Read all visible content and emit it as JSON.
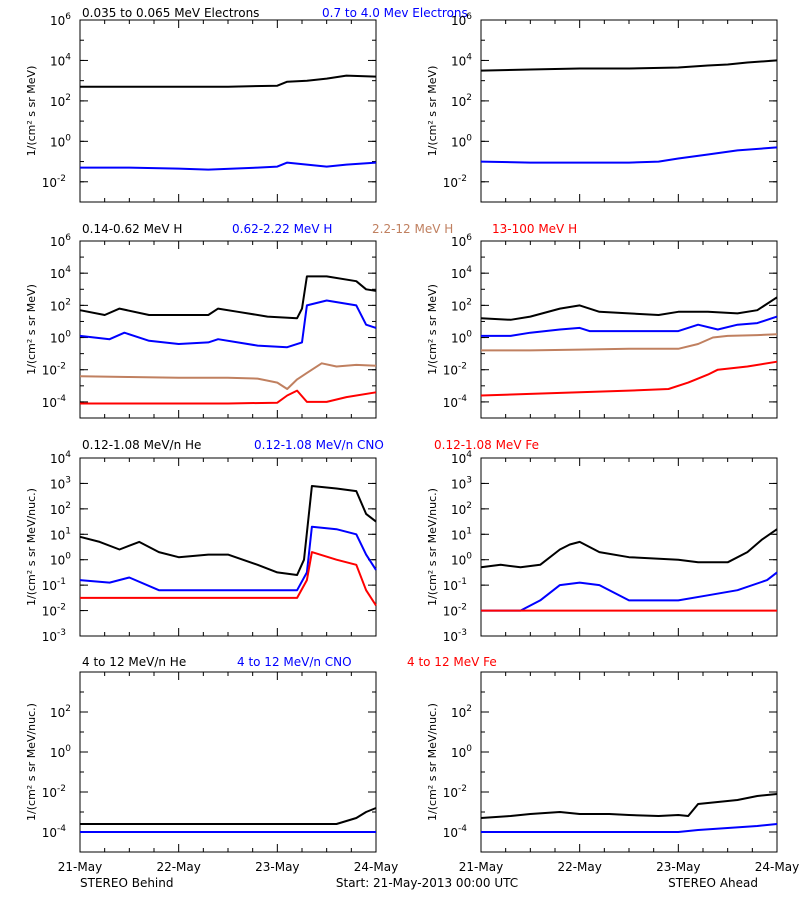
{
  "chart_data": {
    "type": "line",
    "x_ticks": [
      "21-May",
      "22-May",
      "23-May",
      "24-May"
    ],
    "x_range_days": [
      0,
      3
    ],
    "footer": {
      "left": "STEREO Behind",
      "center": "Start: 21-May-2013 00:00 UTC",
      "right": "STEREO Ahead"
    },
    "rows": [
      {
        "ylabel": "1/(cm² s sr MeV)",
        "log_ylim": [
          -3,
          6
        ],
        "tick_exps": [
          -2,
          0,
          2,
          4,
          6
        ],
        "legend": [
          {
            "text": "0.035 to 0.065 MeV Electrons",
            "color": "#000000"
          },
          {
            "text": "0.7 to 4.0 Mev Electrons",
            "color": "#0000ff"
          }
        ],
        "panels": [
          {
            "name": "STEREO Behind",
            "series": [
              {
                "color": "#000000",
                "x": [
                  0,
                  0.5,
                  1.0,
                  1.5,
                  2.0,
                  2.1,
                  2.3,
                  2.5,
                  2.7,
                  3.0
                ],
                "log_y": [
                  2.7,
                  2.7,
                  2.7,
                  2.7,
                  2.75,
                  2.95,
                  3.0,
                  3.1,
                  3.25,
                  3.2
                ]
              },
              {
                "color": "#0000ff",
                "x": [
                  0,
                  0.5,
                  1.0,
                  1.3,
                  1.8,
                  2.0,
                  2.1,
                  2.3,
                  2.5,
                  2.7,
                  3.0
                ],
                "log_y": [
                  -1.3,
                  -1.3,
                  -1.35,
                  -1.4,
                  -1.3,
                  -1.25,
                  -1.05,
                  -1.15,
                  -1.25,
                  -1.15,
                  -1.05
                ]
              }
            ]
          },
          {
            "name": "STEREO Ahead",
            "series": [
              {
                "color": "#000000",
                "x": [
                  0,
                  0.5,
                  1.0,
                  1.5,
                  2.0,
                  2.3,
                  2.5,
                  2.7,
                  3.0
                ],
                "log_y": [
                  3.5,
                  3.55,
                  3.6,
                  3.6,
                  3.65,
                  3.75,
                  3.8,
                  3.9,
                  4.0
                ]
              },
              {
                "color": "#0000ff",
                "x": [
                  0,
                  0.5,
                  1.0,
                  1.5,
                  1.8,
                  2.0,
                  2.3,
                  2.6,
                  3.0
                ],
                "log_y": [
                  -1.0,
                  -1.05,
                  -1.05,
                  -1.05,
                  -1.0,
                  -0.85,
                  -0.65,
                  -0.45,
                  -0.3
                ]
              }
            ]
          }
        ]
      },
      {
        "ylabel": "1/(cm² s sr MeV)",
        "log_ylim": [
          -5,
          6
        ],
        "tick_exps": [
          -4,
          -2,
          0,
          2,
          4,
          6
        ],
        "legend": [
          {
            "text": "0.14-0.62 MeV H",
            "color": "#000000"
          },
          {
            "text": "0.62-2.22 MeV H",
            "color": "#0000ff"
          },
          {
            "text": "2.2-12 MeV H",
            "color": "#c08060"
          },
          {
            "text": "13-100 MeV H",
            "color": "#ff0000"
          }
        ],
        "panels": [
          {
            "name": "STEREO Behind",
            "series": [
              {
                "color": "#000000",
                "x": [
                  0,
                  0.25,
                  0.4,
                  0.7,
                  1.0,
                  1.3,
                  1.4,
                  1.6,
                  1.9,
                  2.2,
                  2.25,
                  2.3,
                  2.5,
                  2.8,
                  2.9,
                  3.0
                ],
                "log_y": [
                  1.7,
                  1.4,
                  1.8,
                  1.4,
                  1.4,
                  1.4,
                  1.8,
                  1.6,
                  1.3,
                  1.2,
                  1.8,
                  3.8,
                  3.8,
                  3.5,
                  3.0,
                  2.9
                ]
              },
              {
                "color": "#0000ff",
                "x": [
                  0,
                  0.3,
                  0.45,
                  0.7,
                  1.0,
                  1.3,
                  1.4,
                  1.8,
                  2.1,
                  2.25,
                  2.3,
                  2.5,
                  2.8,
                  2.9,
                  3.0
                ],
                "log_y": [
                  0.1,
                  -0.1,
                  0.3,
                  -0.2,
                  -0.4,
                  -0.3,
                  -0.1,
                  -0.5,
                  -0.6,
                  -0.3,
                  2.0,
                  2.3,
                  2.0,
                  0.8,
                  0.6
                ]
              },
              {
                "color": "#c08060",
                "x": [
                  0,
                  0.5,
                  1.0,
                  1.5,
                  1.8,
                  2.0,
                  2.1,
                  2.2,
                  2.3,
                  2.45,
                  2.6,
                  2.8,
                  3.0
                ],
                "log_y": [
                  -2.4,
                  -2.45,
                  -2.5,
                  -2.5,
                  -2.55,
                  -2.8,
                  -3.2,
                  -2.6,
                  -2.2,
                  -1.6,
                  -1.8,
                  -1.7,
                  -1.75
                ]
              },
              {
                "color": "#ff0000",
                "x": [
                  0,
                  0.5,
                  1.0,
                  1.5,
                  2.0,
                  2.1,
                  2.2,
                  2.3,
                  2.5,
                  2.7,
                  3.0
                ],
                "log_y": [
                  -4.1,
                  -4.1,
                  -4.1,
                  -4.1,
                  -4.05,
                  -3.6,
                  -3.3,
                  -4.0,
                  -4.0,
                  -3.7,
                  -3.4
                ]
              }
            ]
          },
          {
            "name": "STEREO Ahead",
            "series": [
              {
                "color": "#000000",
                "x": [
                  0,
                  0.3,
                  0.5,
                  0.8,
                  1.0,
                  1.2,
                  1.5,
                  1.8,
                  2.0,
                  2.3,
                  2.6,
                  2.8,
                  3.0
                ],
                "log_y": [
                  1.2,
                  1.1,
                  1.3,
                  1.8,
                  2.0,
                  1.6,
                  1.5,
                  1.4,
                  1.6,
                  1.6,
                  1.5,
                  1.7,
                  2.5
                ]
              },
              {
                "color": "#0000ff",
                "x": [
                  0,
                  0.3,
                  0.5,
                  0.8,
                  1.0,
                  1.1,
                  1.5,
                  2.0,
                  2.2,
                  2.4,
                  2.6,
                  2.8,
                  3.0
                ],
                "log_y": [
                  0.1,
                  0.1,
                  0.3,
                  0.5,
                  0.6,
                  0.4,
                  0.4,
                  0.4,
                  0.8,
                  0.5,
                  0.8,
                  0.9,
                  1.3
                ]
              },
              {
                "color": "#c08060",
                "x": [
                  0,
                  0.5,
                  1.0,
                  1.5,
                  2.0,
                  2.2,
                  2.35,
                  2.5,
                  2.8,
                  3.0
                ],
                "log_y": [
                  -0.8,
                  -0.8,
                  -0.75,
                  -0.7,
                  -0.7,
                  -0.4,
                  0.0,
                  0.1,
                  0.15,
                  0.2
                ]
              },
              {
                "color": "#ff0000",
                "x": [
                  0,
                  0.5,
                  1.0,
                  1.5,
                  1.9,
                  2.1,
                  2.3,
                  2.4,
                  2.7,
                  3.0
                ],
                "log_y": [
                  -3.6,
                  -3.5,
                  -3.4,
                  -3.3,
                  -3.2,
                  -2.8,
                  -2.3,
                  -2.0,
                  -1.8,
                  -1.5
                ]
              }
            ]
          }
        ]
      },
      {
        "ylabel": "1/(cm² s sr MeV/nuc.)",
        "log_ylim": [
          -3,
          4
        ],
        "tick_exps": [
          -3,
          -2,
          -1,
          0,
          1,
          2,
          3,
          4
        ],
        "legend": [
          {
            "text": "0.12-1.08 MeV/n He",
            "color": "#000000"
          },
          {
            "text": "0.12-1.08 MeV/n CNO",
            "color": "#0000ff"
          },
          {
            "text": "0.12-1.08 MeV Fe",
            "color": "#ff0000"
          }
        ],
        "panels": [
          {
            "name": "STEREO Behind",
            "series": [
              {
                "color": "#000000",
                "x": [
                  0,
                  0.2,
                  0.4,
                  0.6,
                  0.8,
                  1.0,
                  1.3,
                  1.5,
                  1.8,
                  2.0,
                  2.2,
                  2.27,
                  2.35,
                  2.6,
                  2.8,
                  2.9,
                  3.0
                ],
                "log_y": [
                  0.9,
                  0.7,
                  0.4,
                  0.7,
                  0.3,
                  0.1,
                  0.2,
                  0.2,
                  -0.2,
                  -0.5,
                  -0.6,
                  0.0,
                  2.9,
                  2.8,
                  2.7,
                  1.8,
                  1.5
                ]
              },
              {
                "color": "#0000ff",
                "x": [
                  0,
                  0.3,
                  0.5,
                  0.8,
                  1.0,
                  1.5,
                  2.0,
                  2.2,
                  2.3,
                  2.35,
                  2.6,
                  2.8,
                  2.9,
                  3.0
                ],
                "log_y": [
                  -0.8,
                  -0.9,
                  -0.7,
                  -1.2,
                  -1.2,
                  -1.2,
                  -1.2,
                  -1.2,
                  -0.5,
                  1.3,
                  1.2,
                  1.0,
                  0.2,
                  -0.4
                ]
              },
              {
                "color": "#ff0000",
                "x": [
                  0,
                  0.5,
                  1.0,
                  1.5,
                  2.0,
                  2.2,
                  2.3,
                  2.35,
                  2.6,
                  2.8,
                  2.9,
                  3.0
                ],
                "log_y": [
                  -1.5,
                  -1.5,
                  -1.5,
                  -1.5,
                  -1.5,
                  -1.5,
                  -0.8,
                  0.3,
                  0.0,
                  -0.2,
                  -1.2,
                  -1.8
                ]
              }
            ]
          },
          {
            "name": "STEREO Ahead",
            "series": [
              {
                "color": "#000000",
                "x": [
                  0,
                  0.2,
                  0.4,
                  0.6,
                  0.8,
                  0.9,
                  1.0,
                  1.2,
                  1.5,
                  2.0,
                  2.2,
                  2.5,
                  2.7,
                  2.85,
                  3.0
                ],
                "log_y": [
                  -0.3,
                  -0.2,
                  -0.3,
                  -0.2,
                  0.4,
                  0.6,
                  0.7,
                  0.3,
                  0.1,
                  0.0,
                  -0.1,
                  -0.1,
                  0.3,
                  0.8,
                  1.2
                ]
              },
              {
                "color": "#0000ff",
                "x": [
                  0,
                  0.4,
                  0.6,
                  0.8,
                  1.0,
                  1.2,
                  1.5,
                  2.0,
                  2.3,
                  2.6,
                  2.9,
                  3.0
                ],
                "log_y": [
                  -2.0,
                  -2.0,
                  -1.6,
                  -1.0,
                  -0.9,
                  -1.0,
                  -1.6,
                  -1.6,
                  -1.4,
                  -1.2,
                  -0.8,
                  -0.5
                ]
              },
              {
                "color": "#ff0000",
                "x": [
                  0,
                  0.5,
                  1.0,
                  1.5,
                  2.0,
                  2.5,
                  3.0
                ],
                "log_y": [
                  -2.0,
                  -2.0,
                  -2.0,
                  -2.0,
                  -2.0,
                  -2.0,
                  -2.0
                ]
              }
            ]
          }
        ]
      },
      {
        "ylabel": "1/(cm² s sr MeV/nuc.)",
        "log_ylim": [
          -5,
          4
        ],
        "tick_exps": [
          -4,
          -2,
          0,
          2
        ],
        "legend": [
          {
            "text": "4 to 12 MeV/n He",
            "color": "#000000"
          },
          {
            "text": "4 to 12 MeV/n CNO",
            "color": "#0000ff"
          },
          {
            "text": "4 to 12 MeV Fe",
            "color": "#ff0000"
          }
        ],
        "panels": [
          {
            "name": "STEREO Behind",
            "series": [
              {
                "color": "#000000",
                "x": [
                  0,
                  0.5,
                  1.0,
                  1.5,
                  2.0,
                  2.3,
                  2.6,
                  2.8,
                  2.9,
                  3.0
                ],
                "log_y": [
                  -3.6,
                  -3.6,
                  -3.6,
                  -3.6,
                  -3.6,
                  -3.6,
                  -3.6,
                  -3.3,
                  -3.0,
                  -2.8
                ]
              },
              {
                "color": "#0000ff",
                "x": [
                  0,
                  0.5,
                  1.0,
                  1.5,
                  2.0,
                  2.5,
                  3.0
                ],
                "log_y": [
                  -4.0,
                  -4.0,
                  -4.0,
                  -4.0,
                  -4.0,
                  -4.0,
                  -4.0
                ]
              }
            ]
          },
          {
            "name": "STEREO Ahead",
            "series": [
              {
                "color": "#000000",
                "x": [
                  0,
                  0.3,
                  0.5,
                  0.8,
                  1.0,
                  1.3,
                  1.5,
                  1.8,
                  2.0,
                  2.1,
                  2.2,
                  2.4,
                  2.6,
                  2.8,
                  3.0
                ],
                "log_y": [
                  -3.3,
                  -3.2,
                  -3.1,
                  -3.0,
                  -3.1,
                  -3.1,
                  -3.15,
                  -3.2,
                  -3.15,
                  -3.2,
                  -2.6,
                  -2.5,
                  -2.4,
                  -2.2,
                  -2.1
                ]
              },
              {
                "color": "#0000ff",
                "x": [
                  0,
                  0.5,
                  1.0,
                  1.5,
                  2.0,
                  2.2,
                  2.5,
                  2.8,
                  3.0
                ],
                "log_y": [
                  -4.0,
                  -4.0,
                  -4.0,
                  -4.0,
                  -4.0,
                  -3.9,
                  -3.8,
                  -3.7,
                  -3.6
                ]
              }
            ]
          }
        ]
      }
    ]
  }
}
